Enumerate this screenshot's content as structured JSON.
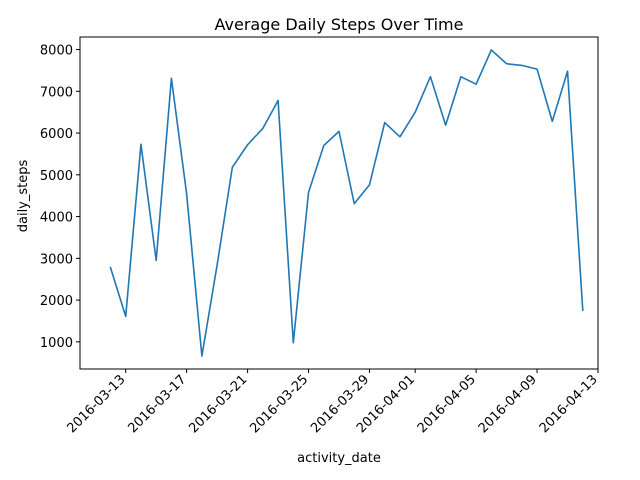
{
  "chart_data": {
    "type": "line",
    "title": "Average Daily Steps Over Time",
    "xlabel": "activity_date",
    "ylabel": "daily_steps",
    "xlim": [
      "2016-03-10",
      "2016-04-13"
    ],
    "ylim": [
      350,
      8300
    ],
    "grid": false,
    "legend": "none",
    "x_ticks": [
      "2016-03-13",
      "2016-03-17",
      "2016-03-21",
      "2016-03-25",
      "2016-03-29",
      "2016-04-01",
      "2016-04-05",
      "2016-04-09",
      "2016-04-13"
    ],
    "y_ticks": [
      1000,
      2000,
      3000,
      4000,
      5000,
      6000,
      7000,
      8000
    ],
    "series": [
      {
        "color": "#1f77b4",
        "x": [
          "2016-03-12",
          "2016-03-13",
          "2016-03-14",
          "2016-03-15",
          "2016-03-16",
          "2016-03-17",
          "2016-03-18",
          "2016-03-19",
          "2016-03-20",
          "2016-03-21",
          "2016-03-22",
          "2016-03-23",
          "2016-03-24",
          "2016-03-25",
          "2016-03-26",
          "2016-03-27",
          "2016-03-28",
          "2016-03-29",
          "2016-03-30",
          "2016-03-31",
          "2016-04-01",
          "2016-04-02",
          "2016-04-03",
          "2016-04-04",
          "2016-04-05",
          "2016-04-06",
          "2016-04-07",
          "2016-04-08",
          "2016-04-09",
          "2016-04-10",
          "2016-04-11",
          "2016-04-12"
        ],
        "values": [
          2780,
          1610,
          5730,
          2950,
          7310,
          4540,
          660,
          2840,
          5180,
          5720,
          6110,
          6780,
          980,
          4580,
          5700,
          6040,
          4310,
          4760,
          6250,
          5910,
          6500,
          7350,
          6190,
          7350,
          7170,
          7990,
          7660,
          7620,
          7530,
          6280,
          7480,
          1760
        ]
      }
    ]
  }
}
